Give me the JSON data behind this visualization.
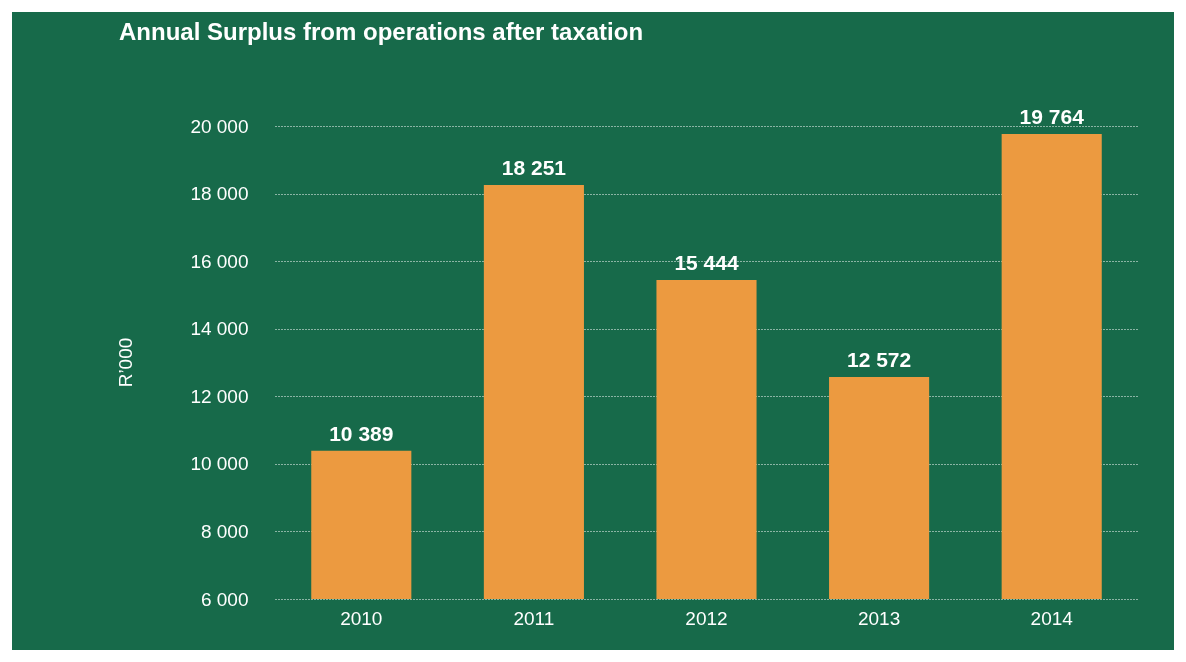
{
  "chart_data": {
    "type": "bar",
    "title": "Annual Surplus from operations after taxation",
    "ylabel": "R’000",
    "categories": [
      "2010",
      "2011",
      "2012",
      "2013",
      "2014"
    ],
    "values": [
      10389,
      18251,
      15444,
      12572,
      19764
    ],
    "value_labels": [
      "10 389",
      "18 251",
      "15 444",
      "12 572",
      "19 764"
    ],
    "color": "#ec9a40",
    "ylim": [
      6000,
      20000
    ],
    "yticks": [
      {
        "value": 6000,
        "label": "6 000"
      },
      {
        "value": 8000,
        "label": "8 000"
      },
      {
        "value": 10000,
        "label": "10 000"
      },
      {
        "value": 12000,
        "label": "12 000"
      },
      {
        "value": 14000,
        "label": "14 000"
      },
      {
        "value": 16000,
        "label": "16 000"
      },
      {
        "value": 18000,
        "label": "18 000"
      },
      {
        "value": 20000,
        "label": "20 000"
      }
    ],
    "grid": "y"
  }
}
